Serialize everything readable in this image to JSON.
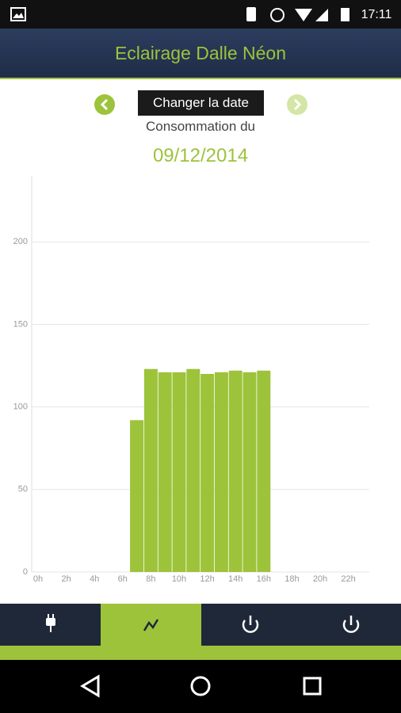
{
  "status_bar": {
    "time": "17:11"
  },
  "header": {
    "title": "Eclairage Dalle Néon"
  },
  "date_picker": {
    "button": "Changer la date",
    "label": "Consommation du",
    "date": "09/12/2014"
  },
  "chart_data": {
    "type": "bar",
    "categories": [
      "0h",
      null,
      "2h",
      null,
      "4h",
      null,
      "6h",
      null,
      "8h",
      null,
      "10h",
      null,
      "12h",
      null,
      "14h",
      null,
      "16h",
      null,
      "18h",
      null,
      "20h",
      null,
      "22h",
      null
    ],
    "values": [
      0,
      0,
      0,
      0,
      0,
      0,
      0,
      92,
      123,
      121,
      121,
      123,
      120,
      121,
      122,
      121,
      122,
      0,
      0,
      0,
      0,
      0,
      0,
      0
    ],
    "color": "#9dc33b",
    "ylim": [
      0,
      240
    ],
    "yticks": [
      0,
      50,
      100,
      150,
      200
    ],
    "grid": true
  }
}
